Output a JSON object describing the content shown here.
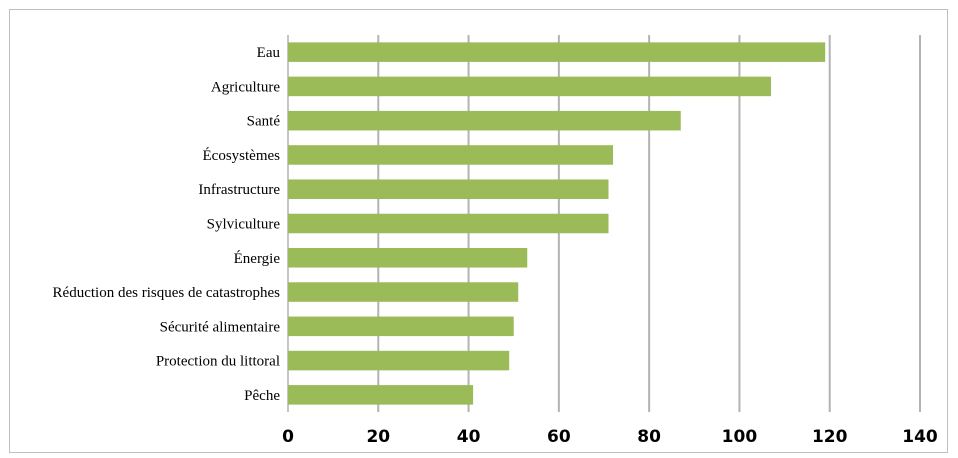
{
  "chart_data": {
    "type": "bar",
    "orientation": "horizontal",
    "categories": [
      "Eau",
      "Agriculture",
      "Santé",
      "Écosystèmes",
      "Infrastructure",
      "Sylviculture",
      "Énergie",
      "Réduction des risques de catastrophes",
      "Sécurité alimentaire",
      "Protection du littoral",
      "Pêche"
    ],
    "values": [
      119,
      107,
      87,
      72,
      71,
      71,
      53,
      51,
      50,
      49,
      41
    ],
    "title": "",
    "xlabel": "",
    "ylabel": "",
    "xlim": [
      0,
      140
    ],
    "xticks": [
      "0",
      "20",
      "40",
      "60",
      "80",
      "100",
      "120",
      "140"
    ],
    "grid": true,
    "legend": "none",
    "colors": {
      "bar": "#9bbb59",
      "grid": "#b3b3b3",
      "frame": "#bfbfbf"
    }
  }
}
